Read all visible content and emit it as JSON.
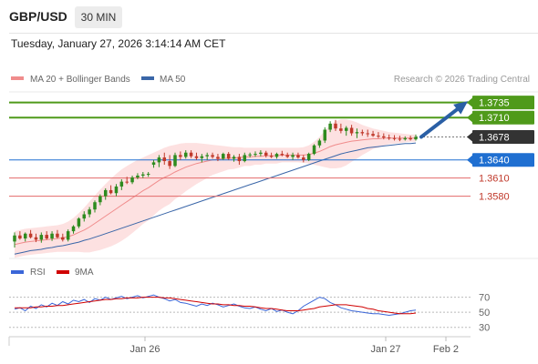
{
  "header": {
    "symbol": "GBP/USD",
    "timeframe": "30 MIN",
    "datetime": "Tuesday, January 27, 2026 3:14:14 AM CET"
  },
  "legend": {
    "ma20": {
      "label": "MA 20 + Bollinger Bands",
      "color": "#f08c8c"
    },
    "ma50": {
      "label": "MA 50",
      "color": "#3a66a8"
    }
  },
  "credit": "Research © 2026 Trading Central",
  "colors": {
    "up": "#2e8b1f",
    "down": "#c0392b",
    "pivot": "#4f9a1a",
    "current": "#333333",
    "support": "#1f6fd1",
    "support_line": "#e36a6a",
    "band_fill": "#fde1e1",
    "arrow": "#2a5fa5"
  },
  "price_levels": [
    {
      "price": 1.3735,
      "label": "1.3735",
      "kind": "target"
    },
    {
      "price": 1.371,
      "label": "1.3710",
      "kind": "target"
    },
    {
      "price": 1.3678,
      "label": "1.3678",
      "kind": "current"
    },
    {
      "price": 1.364,
      "label": "1.3640",
      "kind": "pivot"
    },
    {
      "price": 1.361,
      "label": "1.3610",
      "kind": "support"
    },
    {
      "price": 1.358,
      "label": "1.3580",
      "kind": "support"
    }
  ],
  "rsi_panel": {
    "rsi_label": "RSI",
    "ma_label": "9MA",
    "rsi_color": "#3a66d8",
    "ma_color": "#d00000",
    "ticks": [
      "70",
      "50",
      "30"
    ]
  },
  "x_axis": {
    "labels": [
      "Jan 26",
      "Jan 27",
      "Feb 2"
    ]
  },
  "chart_data": {
    "type": "candlestick",
    "ylim": [
      1.348,
      1.376
    ],
    "candles": [
      [
        1.3505,
        1.352,
        1.3495,
        1.3515
      ],
      [
        1.3515,
        1.3522,
        1.3508,
        1.351
      ],
      [
        1.351,
        1.352,
        1.3505,
        1.3518
      ],
      [
        1.3518,
        1.3524,
        1.351,
        1.3512
      ],
      [
        1.3512,
        1.3518,
        1.3504,
        1.3508
      ],
      [
        1.3508,
        1.352,
        1.3503,
        1.3516
      ],
      [
        1.3516,
        1.3522,
        1.3508,
        1.351
      ],
      [
        1.351,
        1.3522,
        1.3506,
        1.3518
      ],
      [
        1.3518,
        1.3524,
        1.351,
        1.3512
      ],
      [
        1.3512,
        1.3518,
        1.3505,
        1.3508
      ],
      [
        1.3508,
        1.3525,
        1.3505,
        1.3522
      ],
      [
        1.3522,
        1.3532,
        1.3518,
        1.353
      ],
      [
        1.353,
        1.3545,
        1.3527,
        1.3543
      ],
      [
        1.3543,
        1.3555,
        1.3538,
        1.355
      ],
      [
        1.355,
        1.3562,
        1.3545,
        1.3558
      ],
      [
        1.3558,
        1.3573,
        1.3553,
        1.357
      ],
      [
        1.357,
        1.3583,
        1.3565,
        1.358
      ],
      [
        1.358,
        1.3593,
        1.3574,
        1.359
      ],
      [
        1.359,
        1.3598,
        1.3583,
        1.3585
      ],
      [
        1.3585,
        1.36,
        1.358,
        1.3596
      ],
      [
        1.3596,
        1.3608,
        1.359,
        1.3604
      ],
      [
        1.3604,
        1.3612,
        1.36,
        1.3603
      ],
      [
        1.3603,
        1.3614,
        1.36,
        1.3611
      ],
      [
        1.3611,
        1.3618,
        1.3608,
        1.3614
      ],
      [
        1.3614,
        1.362,
        1.361,
        1.3616
      ],
      [
        1.3616,
        1.362,
        1.3612,
        1.3617
      ],
      [
        1.3632,
        1.364,
        1.3627,
        1.3636
      ],
      [
        1.3636,
        1.3648,
        1.3628,
        1.3644
      ],
      [
        1.3644,
        1.3652,
        1.3632,
        1.3638
      ],
      [
        1.3638,
        1.3648,
        1.3625,
        1.363
      ],
      [
        1.363,
        1.3652,
        1.3628,
        1.3648
      ],
      [
        1.3648,
        1.3654,
        1.364,
        1.3645
      ],
      [
        1.3645,
        1.3656,
        1.3642,
        1.3652
      ],
      [
        1.3652,
        1.3656,
        1.3643,
        1.3646
      ],
      [
        1.3646,
        1.3652,
        1.364,
        1.3643
      ],
      [
        1.3643,
        1.365,
        1.3636,
        1.3646
      ],
      [
        1.3646,
        1.3652,
        1.364,
        1.3648
      ],
      [
        1.3648,
        1.3652,
        1.3642,
        1.3645
      ],
      [
        1.3645,
        1.365,
        1.3638,
        1.3642
      ],
      [
        1.3642,
        1.3652,
        1.364,
        1.365
      ],
      [
        1.365,
        1.3653,
        1.364,
        1.3642
      ],
      [
        1.3642,
        1.3648,
        1.3637,
        1.3645
      ],
      [
        1.3645,
        1.365,
        1.3632,
        1.3638
      ],
      [
        1.3638,
        1.3652,
        1.3636,
        1.3648
      ],
      [
        1.3648,
        1.3652,
        1.3644,
        1.3649
      ],
      [
        1.3649,
        1.3654,
        1.3645,
        1.365
      ],
      [
        1.365,
        1.3656,
        1.3646,
        1.3652
      ],
      [
        1.3652,
        1.3655,
        1.3644,
        1.3647
      ],
      [
        1.3647,
        1.3652,
        1.3643,
        1.3645
      ],
      [
        1.3645,
        1.3652,
        1.3642,
        1.365
      ],
      [
        1.365,
        1.3655,
        1.3646,
        1.3648
      ],
      [
        1.3648,
        1.3652,
        1.3643,
        1.3645
      ],
      [
        1.3645,
        1.3652,
        1.364,
        1.3648
      ],
      [
        1.3648,
        1.3652,
        1.3642,
        1.3644
      ],
      [
        1.3644,
        1.3648,
        1.3636,
        1.364
      ],
      [
        1.364,
        1.3652,
        1.3638,
        1.365
      ],
      [
        1.365,
        1.3666,
        1.3648,
        1.3664
      ],
      [
        1.3664,
        1.3675,
        1.366,
        1.3672
      ],
      [
        1.3672,
        1.3694,
        1.3668,
        1.369
      ],
      [
        1.369,
        1.3704,
        1.3686,
        1.37
      ],
      [
        1.37,
        1.3706,
        1.3688,
        1.3692
      ],
      [
        1.3692,
        1.37,
        1.3684,
        1.3688
      ],
      [
        1.3688,
        1.3696,
        1.368,
        1.3693
      ],
      [
        1.3693,
        1.3698,
        1.368,
        1.3684
      ],
      [
        1.3684,
        1.3692,
        1.3676,
        1.3686
      ],
      [
        1.3686,
        1.369,
        1.368,
        1.3684
      ],
      [
        1.3684,
        1.369,
        1.3678,
        1.3683
      ],
      [
        1.3683,
        1.3688,
        1.3678,
        1.368
      ],
      [
        1.368,
        1.3686,
        1.3676,
        1.3679
      ],
      [
        1.3679,
        1.3684,
        1.3674,
        1.3677
      ],
      [
        1.3677,
        1.3682,
        1.3673,
        1.3676
      ],
      [
        1.3676,
        1.3681,
        1.3672,
        1.3675
      ],
      [
        1.3675,
        1.368,
        1.3671,
        1.3674
      ],
      [
        1.3674,
        1.3679,
        1.3672,
        1.3676
      ],
      [
        1.3676,
        1.368,
        1.3672,
        1.3674
      ],
      [
        1.3674,
        1.3682,
        1.3672,
        1.3678
      ]
    ],
    "ma20": [
      1.35,
      1.3502,
      1.3504,
      1.3505,
      1.3506,
      1.3507,
      1.3508,
      1.3509,
      1.351,
      1.3511,
      1.3513,
      1.3516,
      1.352,
      1.3524,
      1.3529,
      1.3535,
      1.3541,
      1.3547,
      1.3553,
      1.3559,
      1.3565,
      1.3571,
      1.3577,
      1.3583,
      1.3589,
      1.3594,
      1.36,
      1.3606,
      1.3611,
      1.3615,
      1.362,
      1.3624,
      1.3628,
      1.3631,
      1.3634,
      1.3636,
      1.3638,
      1.364,
      1.3641,
      1.3642,
      1.3643,
      1.3643,
      1.3644,
      1.3645,
      1.3645,
      1.3646,
      1.3646,
      1.3647,
      1.3647,
      1.3647,
      1.3648,
      1.3648,
      1.3648,
      1.3648,
      1.3648,
      1.3649,
      1.3651,
      1.3654,
      1.3658,
      1.3662,
      1.3665,
      1.3667,
      1.3669,
      1.3671,
      1.3672,
      1.3673,
      1.3674,
      1.3675,
      1.3675,
      1.3676,
      1.3676,
      1.3676,
      1.3676,
      1.3676,
      1.3676,
      1.3676
    ],
    "bb_upper": [
      1.3522,
      1.3524,
      1.3526,
      1.3527,
      1.3528,
      1.3529,
      1.353,
      1.3531,
      1.3532,
      1.3534,
      1.3538,
      1.3544,
      1.3552,
      1.3561,
      1.3571,
      1.3581,
      1.3591,
      1.36,
      1.3609,
      1.3617,
      1.3624,
      1.363,
      1.3635,
      1.364,
      1.3644,
      1.3648,
      1.3652,
      1.3656,
      1.366,
      1.3663,
      1.3665,
      1.3667,
      1.3668,
      1.3668,
      1.3668,
      1.3667,
      1.3666,
      1.3665,
      1.3664,
      1.3663,
      1.3662,
      1.3661,
      1.3661,
      1.366,
      1.366,
      1.366,
      1.366,
      1.366,
      1.366,
      1.366,
      1.366,
      1.366,
      1.366,
      1.366,
      1.3661,
      1.3664,
      1.367,
      1.3678,
      1.3688,
      1.3698,
      1.3704,
      1.3707,
      1.3707,
      1.3705,
      1.3702,
      1.3698,
      1.3695,
      1.3692,
      1.369,
      1.3688,
      1.3686,
      1.3685,
      1.3684,
      1.3683,
      1.3682,
      1.3682
    ],
    "bb_lower": [
      1.3478,
      1.348,
      1.3482,
      1.3483,
      1.3484,
      1.3485,
      1.3486,
      1.3487,
      1.3488,
      1.3488,
      1.3488,
      1.3488,
      1.3488,
      1.3487,
      1.3487,
      1.3489,
      1.3491,
      1.3494,
      1.3497,
      1.3501,
      1.3506,
      1.3512,
      1.3519,
      1.3526,
      1.3534,
      1.354,
      1.3548,
      1.3556,
      1.3562,
      1.3567,
      1.3575,
      1.3581,
      1.3588,
      1.3594,
      1.36,
      1.3605,
      1.361,
      1.3615,
      1.3618,
      1.3621,
      1.3624,
      1.3625,
      1.3627,
      1.363,
      1.363,
      1.3632,
      1.3632,
      1.3634,
      1.3634,
      1.3634,
      1.3636,
      1.3636,
      1.3636,
      1.3636,
      1.3635,
      1.3634,
      1.3632,
      1.363,
      1.3628,
      1.3626,
      1.3626,
      1.3627,
      1.3631,
      1.3637,
      1.3642,
      1.3648,
      1.3653,
      1.3658,
      1.366,
      1.3664,
      1.3666,
      1.3667,
      1.3668,
      1.3669,
      1.367,
      1.367
    ],
    "ma50": [
      1.3484,
      1.3486,
      1.3488,
      1.349,
      1.3491,
      1.3492,
      1.3494,
      1.3495,
      1.3497,
      1.3498,
      1.35,
      1.3502,
      1.3504,
      1.3507,
      1.3509,
      1.3512,
      1.3515,
      1.3518,
      1.3521,
      1.3524,
      1.3527,
      1.353,
      1.3533,
      1.3536,
      1.3539,
      1.3542,
      1.3545,
      1.3548,
      1.3551,
      1.3554,
      1.3557,
      1.356,
      1.3563,
      1.3566,
      1.3569,
      1.3572,
      1.3575,
      1.3578,
      1.3581,
      1.3584,
      1.3587,
      1.359,
      1.3593,
      1.3596,
      1.3599,
      1.3602,
      1.3605,
      1.3608,
      1.3611,
      1.3614,
      1.3617,
      1.362,
      1.3623,
      1.3626,
      1.3629,
      1.3632,
      1.3635,
      1.3638,
      1.3641,
      1.3644,
      1.3647,
      1.365,
      1.3652,
      1.3654,
      1.3656,
      1.3658,
      1.366,
      1.3661,
      1.3662,
      1.3663,
      1.3664,
      1.3665,
      1.3666,
      1.3667,
      1.3667,
      1.3668
    ],
    "rsi": [
      54,
      56,
      52,
      58,
      55,
      60,
      57,
      62,
      59,
      64,
      61,
      66,
      64,
      67,
      63,
      68,
      66,
      70,
      67,
      69,
      71,
      68,
      70,
      72,
      69,
      71,
      73,
      70,
      68,
      65,
      67,
      63,
      62,
      60,
      58,
      61,
      59,
      62,
      60,
      57,
      59,
      61,
      58,
      56,
      55,
      57,
      54,
      52,
      55,
      51,
      53,
      50,
      48,
      52,
      58,
      62,
      66,
      70,
      68,
      63,
      60,
      56,
      54,
      52,
      51,
      50,
      49,
      48,
      48,
      47,
      46,
      47,
      48,
      50,
      52,
      53
    ],
    "rsi_ma": [
      56,
      56,
      56,
      56,
      57,
      57,
      58,
      58,
      59,
      59,
      60,
      61,
      62,
      63,
      64,
      65,
      66,
      67,
      67,
      68,
      68,
      69,
      69,
      69,
      70,
      70,
      70,
      70,
      69,
      69,
      68,
      67,
      66,
      65,
      64,
      63,
      62,
      61,
      61,
      60,
      60,
      59,
      59,
      58,
      58,
      57,
      56,
      55,
      55,
      54,
      53,
      52,
      52,
      52,
      53,
      54,
      55,
      57,
      58,
      59,
      60,
      60,
      60,
      59,
      58,
      57,
      55,
      54,
      52,
      51,
      50,
      49,
      48,
      48,
      48,
      49
    ]
  }
}
